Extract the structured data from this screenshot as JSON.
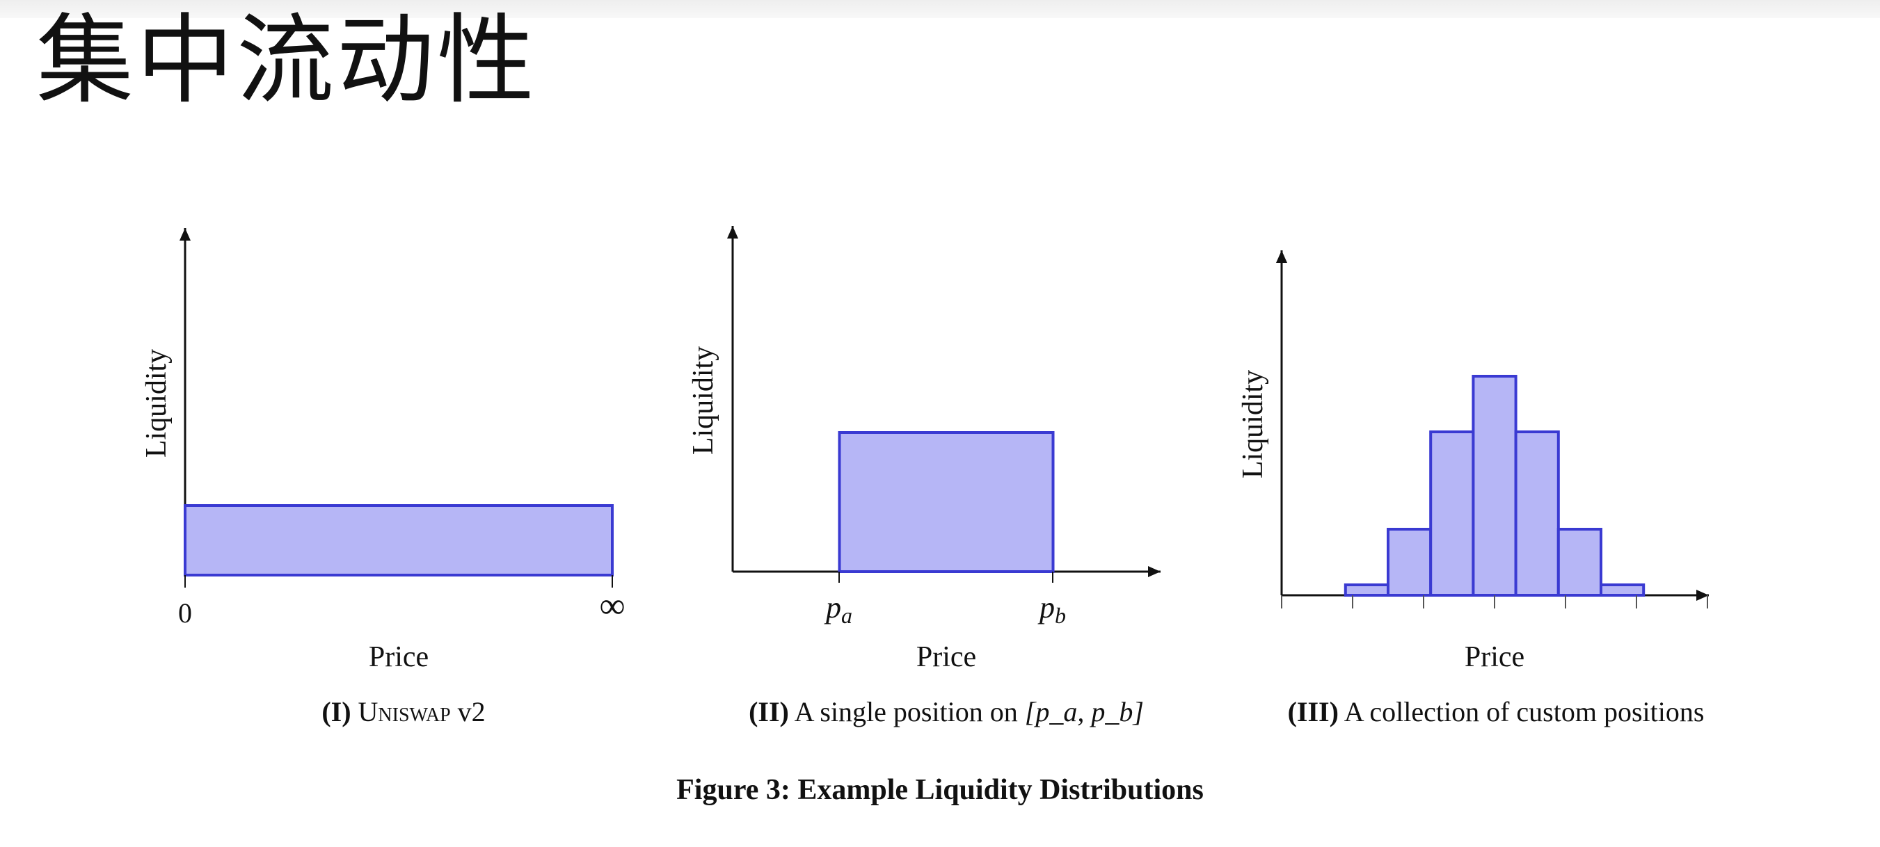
{
  "page_title": "集中流动性",
  "figure_title": "Figure 3: Example Liquidity Distributions",
  "colors": {
    "fill": "#b6b6f6",
    "stroke": "#3a3ad2",
    "axis": "#111111"
  },
  "chart_data": [
    {
      "type": "bar",
      "panel_label": "(I)",
      "caption_text_smallcaps": "Uniswap",
      "caption_text_tail": " v2",
      "xlabel": "Price",
      "ylabel": "Liquidity",
      "x_tick_labels": [
        "0",
        "∞"
      ],
      "y_range": [
        0,
        1
      ],
      "bars": [
        {
          "x_start": 0,
          "x_end": 1,
          "value": 0.2
        }
      ]
    },
    {
      "type": "bar",
      "panel_label": "(II)",
      "caption_text": "A single position on ",
      "caption_math": "[p_a, p_b]",
      "xlabel": "Price",
      "ylabel": "Liquidity",
      "x_tick_labels": [
        "p_a",
        "p_b"
      ],
      "y_range": [
        0,
        1
      ],
      "bars": [
        {
          "x_start": 0.25,
          "x_end": 0.75,
          "value": 0.4
        }
      ]
    },
    {
      "type": "bar",
      "panel_label": "(III)",
      "caption_text": "A collection of custom positions",
      "xlabel": "Price",
      "ylabel": "Liquidity",
      "y_range": [
        0,
        1
      ],
      "x_tick_count": 6,
      "bars": [
        {
          "x_start": 0.15,
          "x_end": 0.25,
          "value": 0.03
        },
        {
          "x_start": 0.25,
          "x_end": 0.35,
          "value": 0.19
        },
        {
          "x_start": 0.35,
          "x_end": 0.45,
          "value": 0.47
        },
        {
          "x_start": 0.45,
          "x_end": 0.55,
          "value": 0.63
        },
        {
          "x_start": 0.55,
          "x_end": 0.65,
          "value": 0.47
        },
        {
          "x_start": 0.65,
          "x_end": 0.75,
          "value": 0.19
        },
        {
          "x_start": 0.75,
          "x_end": 0.85,
          "value": 0.03
        }
      ]
    }
  ]
}
